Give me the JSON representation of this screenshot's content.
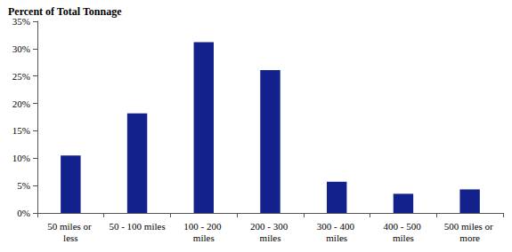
{
  "chart_data": {
    "type": "bar",
    "ylabel": "Percent of Total Tonnage",
    "categories": [
      "50 miles or less",
      "50 - 100 miles",
      "100 - 200 miles",
      "200 - 300 miles",
      "300 - 400 miles",
      "400 - 500 miles",
      "500 miles or more"
    ],
    "values": [
      10.5,
      18.2,
      31.2,
      26.1,
      5.7,
      3.5,
      4.3
    ],
    "color": "#12218c",
    "ylim": [
      0,
      35
    ],
    "yticks": [
      {
        "value": 0,
        "label": "0%"
      },
      {
        "value": 5,
        "label": "5%"
      },
      {
        "value": 10,
        "label": "10%"
      },
      {
        "value": 15,
        "label": "15%"
      },
      {
        "value": 20,
        "label": "20%"
      },
      {
        "value": 25,
        "label": "25%"
      },
      {
        "value": 30,
        "label": "30%"
      },
      {
        "value": 35,
        "label": "35%"
      }
    ],
    "grid": false
  }
}
